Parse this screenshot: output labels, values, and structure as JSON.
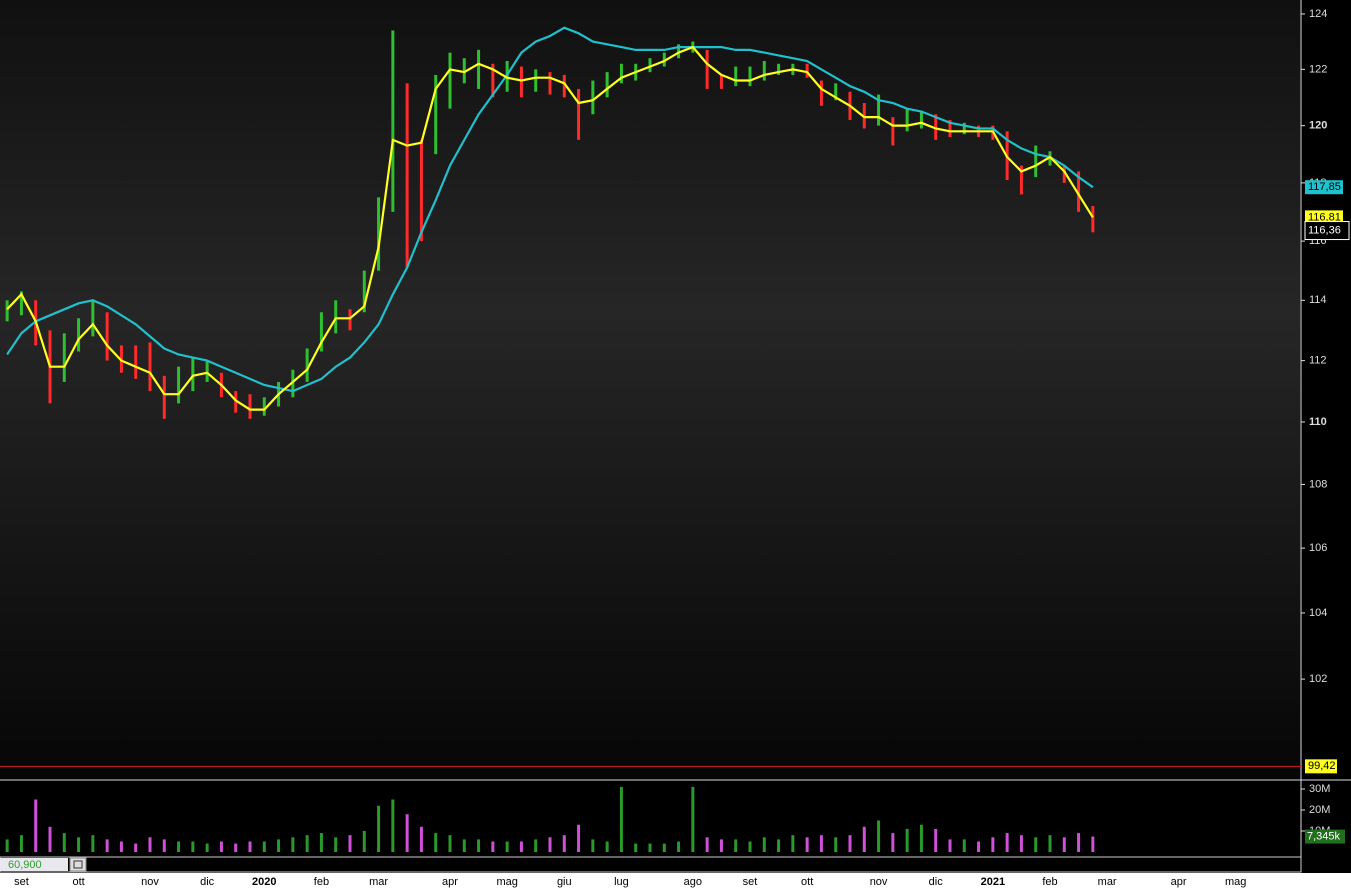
{
  "chart_data": [
    {
      "type": "ohlc",
      "categories": [
        null,
        "set",
        null,
        null,
        null,
        "ott",
        null,
        null,
        null,
        null,
        "nov",
        null,
        null,
        null,
        "dic",
        null,
        null,
        null,
        "2020",
        null,
        null,
        null,
        "feb",
        null,
        null,
        null,
        "mar",
        null,
        null,
        null,
        null,
        "apr",
        null,
        null,
        null,
        "mag",
        null,
        null,
        null,
        "giu",
        null,
        null,
        null,
        "lug",
        null,
        null,
        null,
        null,
        "ago",
        null,
        null,
        null,
        "set",
        null,
        null,
        null,
        "ott",
        null,
        null,
        null,
        null,
        "nov",
        null,
        null,
        null,
        "dic",
        null,
        null,
        null,
        "2021",
        null,
        null,
        null,
        "feb",
        null,
        null,
        null,
        "mar",
        null,
        null,
        null,
        null,
        "apr",
        null,
        null,
        null,
        "mag",
        null,
        null,
        null,
        null
      ],
      "high": [
        114.0,
        114.3,
        114.0,
        113.0,
        112.9,
        113.4,
        114.0,
        113.6,
        112.5,
        112.5,
        112.6,
        111.5,
        111.8,
        112.1,
        112.0,
        111.6,
        111.0,
        110.9,
        110.8,
        111.3,
        111.7,
        112.4,
        113.6,
        114.0,
        113.7,
        115.0,
        117.5,
        123.4,
        121.5,
        119.5,
        121.8,
        122.6,
        122.4,
        122.7,
        122.2,
        122.3,
        122.1,
        122.0,
        121.9,
        121.8,
        121.3,
        121.6,
        121.9,
        122.2,
        122.2,
        122.4,
        122.6,
        122.9,
        123.0,
        122.7,
        121.8,
        122.1,
        122.1,
        122.3,
        122.2,
        122.2,
        122.2,
        121.6,
        121.5,
        121.2,
        120.8,
        121.1,
        120.3,
        120.6,
        120.5,
        120.4,
        120.2,
        120.1,
        120.0,
        120.0,
        119.8,
        118.6,
        119.3,
        119.1,
        118.6,
        118.4,
        117.2,
        null,
        null,
        null,
        null,
        null,
        null,
        null,
        null,
        null,
        null,
        null,
        null,
        null,
        null
      ],
      "low": [
        113.3,
        113.5,
        112.5,
        110.6,
        111.3,
        112.3,
        112.8,
        112.0,
        111.6,
        111.4,
        111.0,
        110.1,
        110.6,
        111.0,
        111.3,
        110.8,
        110.3,
        110.1,
        110.2,
        110.5,
        110.8,
        111.3,
        112.3,
        112.9,
        113.0,
        113.6,
        115.0,
        117.0,
        115.1,
        116.0,
        119.0,
        120.6,
        121.5,
        121.3,
        121.0,
        121.2,
        121.0,
        121.2,
        121.1,
        121.0,
        119.5,
        120.4,
        121.0,
        121.5,
        121.6,
        121.9,
        122.1,
        122.4,
        122.6,
        121.3,
        121.3,
        121.4,
        121.4,
        121.6,
        121.8,
        121.8,
        121.7,
        120.7,
        120.9,
        120.2,
        119.9,
        120.0,
        119.3,
        119.8,
        119.9,
        119.5,
        119.6,
        119.7,
        119.6,
        119.5,
        118.1,
        117.6,
        118.2,
        118.6,
        118.0,
        117.0,
        116.3,
        null,
        null,
        null,
        null,
        null,
        null,
        null,
        null,
        null,
        null,
        null,
        null,
        null,
        null
      ],
      "up_color": "#2fbf2f",
      "down_color": "#ff2a2a",
      "ma_fast": {
        "color": "#ffff20",
        "values": [
          113.7,
          114.2,
          113.3,
          111.8,
          111.8,
          112.7,
          113.2,
          112.5,
          112.0,
          111.8,
          111.6,
          110.9,
          110.9,
          111.5,
          111.6,
          111.2,
          110.7,
          110.4,
          110.4,
          110.9,
          111.3,
          111.7,
          112.6,
          113.4,
          113.4,
          113.8,
          115.8,
          119.5,
          119.3,
          119.4,
          121.3,
          122.0,
          121.9,
          122.2,
          122.0,
          121.7,
          121.6,
          121.7,
          121.7,
          121.5,
          120.8,
          120.9,
          121.3,
          121.7,
          121.9,
          122.1,
          122.3,
          122.6,
          122.8,
          122.2,
          121.8,
          121.6,
          121.6,
          121.8,
          121.9,
          122.0,
          121.9,
          121.3,
          121.0,
          120.7,
          120.3,
          120.3,
          120.0,
          120.0,
          120.1,
          119.9,
          119.8,
          119.8,
          119.8,
          119.8,
          118.9,
          118.4,
          118.6,
          118.9,
          118.4,
          117.6,
          116.81,
          null,
          null,
          null,
          null,
          null,
          null,
          null,
          null,
          null,
          null,
          null,
          null,
          null,
          null
        ]
      },
      "ma_slow": {
        "color": "#20c0cc",
        "values": [
          112.2,
          112.9,
          113.3,
          113.5,
          113.7,
          113.9,
          114.0,
          113.8,
          113.5,
          113.2,
          112.8,
          112.4,
          112.2,
          112.1,
          112.0,
          111.8,
          111.6,
          111.4,
          111.2,
          111.1,
          111.0,
          111.2,
          111.4,
          111.8,
          112.1,
          112.6,
          113.2,
          114.2,
          115.1,
          116.3,
          117.4,
          118.6,
          119.5,
          120.4,
          121.1,
          121.8,
          122.6,
          123.0,
          123.2,
          123.5,
          123.3,
          123.0,
          122.9,
          122.8,
          122.7,
          122.7,
          122.7,
          122.8,
          122.8,
          122.8,
          122.8,
          122.7,
          122.7,
          122.6,
          122.5,
          122.4,
          122.3,
          122.0,
          121.7,
          121.4,
          121.2,
          120.9,
          120.8,
          120.6,
          120.5,
          120.3,
          120.1,
          120.0,
          119.9,
          119.9,
          119.5,
          119.2,
          119.0,
          118.9,
          118.6,
          118.2,
          117.85,
          null,
          null,
          null,
          null,
          null,
          null,
          null,
          null,
          null,
          null,
          null,
          null,
          null,
          null
        ]
      },
      "log_scale": true,
      "ylim": [
        99.08,
        124.51
      ],
      "yticks": [
        102,
        104,
        106,
        108,
        110,
        112,
        114,
        116,
        118,
        120,
        122,
        124
      ],
      "bold_ticks": [
        110,
        120
      ],
      "tags": [
        {
          "value": 117.85,
          "label": "117,85",
          "color": "#20c0cc",
          "text_color": "#000000"
        },
        {
          "value": 116.81,
          "label": "116,81",
          "color": "#ffff20",
          "text_color": "#000000"
        },
        {
          "value": 116.36,
          "label": "116,36",
          "color": "#000000",
          "text_color": "#ffffff"
        }
      ],
      "reference_line": {
        "value": 99.42,
        "label": "99,42",
        "color": "#d02020"
      }
    },
    {
      "type": "bar",
      "values": [
        6,
        8,
        25,
        12,
        9,
        7,
        8,
        6,
        5,
        4,
        7,
        6,
        5,
        5,
        4,
        5,
        4,
        5,
        5,
        6,
        7,
        8,
        9,
        7,
        8,
        10,
        22,
        25,
        18,
        12,
        9,
        8,
        6,
        6,
        5,
        5,
        5,
        6,
        7,
        8,
        13,
        6,
        5,
        31,
        4,
        4,
        4,
        5,
        31,
        7,
        6,
        6,
        5,
        7,
        6,
        8,
        7,
        8,
        7,
        8,
        12,
        15,
        9,
        11,
        13,
        11,
        6,
        6,
        5,
        7,
        9,
        8,
        7,
        8,
        7,
        9,
        7.345,
        null,
        null,
        null,
        null,
        null,
        null,
        null,
        null,
        null,
        null,
        null,
        null,
        null,
        null
      ],
      "up_color": "#2a9a2a",
      "down_color": "#d050d8",
      "ylim": [
        0,
        33
      ],
      "yticks": [
        {
          "value": 10,
          "label": "10M"
        },
        {
          "value": 20,
          "label": "20M"
        },
        {
          "value": 30,
          "label": "30M"
        }
      ],
      "last_tag": {
        "value": 7.345,
        "label": "7,345k",
        "color": "#1f6f1f"
      },
      "info_box": "60,900"
    }
  ]
}
